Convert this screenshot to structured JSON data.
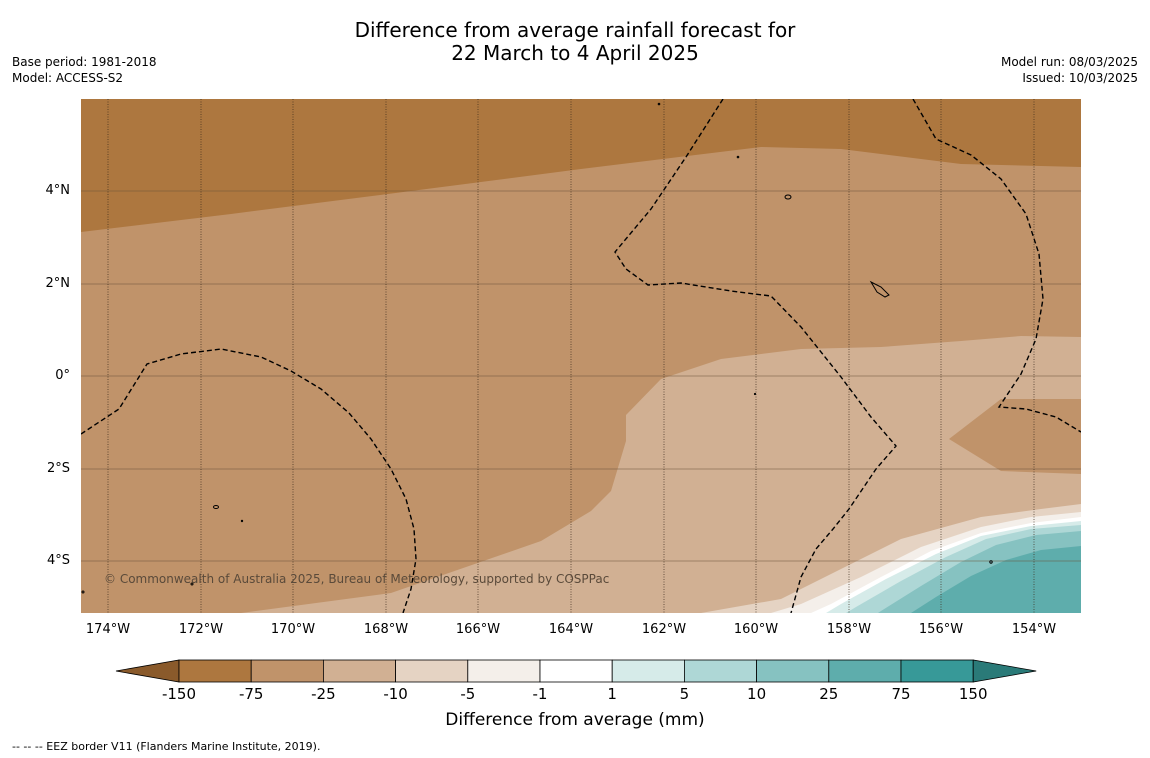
{
  "title_line1": "Difference from average rainfall forecast for",
  "title_line2": "22 March to 4 April 2025",
  "base_period": "Base period: 1981-2018",
  "model": "Model: ACCESS-S2",
  "model_run": "Model run: 08/03/2025",
  "issued": "Issued: 10/03/2025",
  "copyright": "© Commonwealth of Australia 2025, Bureau of Meteorology, supported by COSPPac",
  "lat_ticks": [
    "4°N",
    "2°N",
    "0°",
    "2°S",
    "4°S"
  ],
  "lon_ticks": [
    "174°W",
    "172°W",
    "170°W",
    "168°W",
    "166°W",
    "164°W",
    "162°W",
    "160°W",
    "158°W",
    "156°W",
    "154°W"
  ],
  "colorbar": {
    "title": "Difference from average (mm)",
    "labels": [
      "-150",
      "-75",
      "-25",
      "-10",
      "-5",
      "-1",
      "1",
      "5",
      "10",
      "25",
      "75",
      "150"
    ],
    "colors": [
      "#ad773f",
      "#c0936a",
      "#d1b093",
      "#e5d3c3",
      "#f4efea",
      "#ffffff",
      "#d6ebe9",
      "#aed7d6",
      "#86c2c1",
      "#5eadac",
      "#379998"
    ],
    "under_color": "#8a5a2b",
    "over_color": "#2a7a78"
  },
  "footer": "--  --  -- EEZ border V11 (Flanders Marine Institute, 2019)."
}
